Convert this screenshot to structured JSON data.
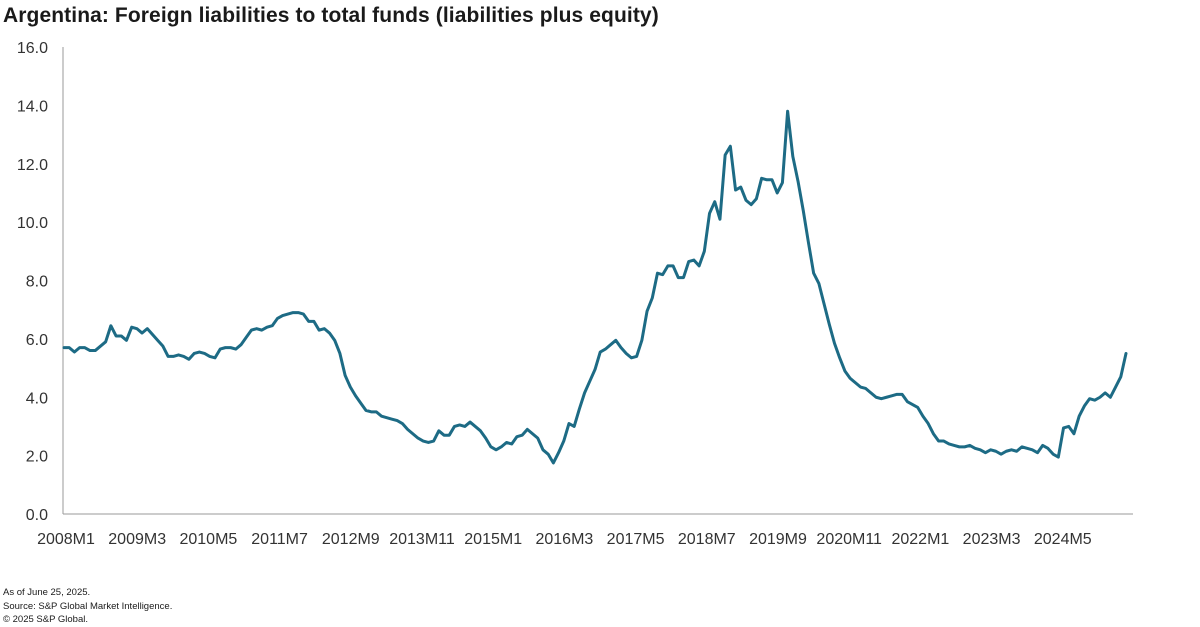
{
  "title": "Argentina: Foreign liabilities to total funds (liabilities plus equity)",
  "footnotes": {
    "as_of": "As of June 25, 2025.",
    "source": "Source: S&P Global Market Intelligence.",
    "copyright": "© 2025 S&P Global."
  },
  "colors": {
    "line": "#1d6b85",
    "axis": "#9a9a9a"
  },
  "chart_data": {
    "type": "line",
    "title": "Argentina: Foreign liabilities to total funds (liabilities plus equity)",
    "xlabel": "",
    "ylabel": "",
    "ylim": [
      0,
      16
    ],
    "yticks": [
      "0.0",
      "2.0",
      "4.0",
      "6.0",
      "8.0",
      "10.0",
      "12.0",
      "14.0",
      "16.0"
    ],
    "xticks": [
      "2008M1",
      "2009M3",
      "2010M5",
      "2011M7",
      "2012M9",
      "2013M11",
      "2015M1",
      "2016M3",
      "2017M5",
      "2018M7",
      "2019M9",
      "2020M11",
      "2022M1",
      "2023M3",
      "2024M5"
    ],
    "grid": false,
    "legend": "none",
    "series": [
      {
        "x_start": "2008M1",
        "frequency": "monthly",
        "values": [
          5.7,
          5.7,
          5.55,
          5.7,
          5.7,
          5.6,
          5.6,
          5.75,
          5.9,
          6.45,
          6.1,
          6.1,
          5.95,
          6.4,
          6.35,
          6.2,
          6.35,
          6.15,
          5.95,
          5.75,
          5.4,
          5.4,
          5.45,
          5.4,
          5.3,
          5.5,
          5.55,
          5.5,
          5.4,
          5.35,
          5.65,
          5.7,
          5.7,
          5.65,
          5.8,
          6.05,
          6.3,
          6.35,
          6.3,
          6.4,
          6.45,
          6.7,
          6.8,
          6.85,
          6.9,
          6.9,
          6.85,
          6.6,
          6.6,
          6.3,
          6.35,
          6.2,
          5.95,
          5.5,
          4.75,
          4.35,
          4.05,
          3.8,
          3.55,
          3.5,
          3.5,
          3.35,
          3.3,
          3.25,
          3.2,
          3.1,
          2.9,
          2.75,
          2.6,
          2.5,
          2.45,
          2.5,
          2.85,
          2.7,
          2.7,
          3.0,
          3.05,
          3.0,
          3.15,
          3.0,
          2.85,
          2.6,
          2.3,
          2.2,
          2.3,
          2.45,
          2.4,
          2.65,
          2.7,
          2.9,
          2.75,
          2.6,
          2.2,
          2.05,
          1.75,
          2.1,
          2.5,
          3.1,
          3.0,
          3.6,
          4.15,
          4.55,
          4.95,
          5.55,
          5.65,
          5.8,
          5.95,
          5.7,
          5.5,
          5.35,
          5.4,
          5.95,
          6.95,
          7.4,
          8.25,
          8.2,
          8.5,
          8.5,
          8.1,
          8.1,
          8.65,
          8.7,
          8.5,
          9.0,
          10.3,
          10.7,
          10.1,
          12.3,
          12.6,
          11.1,
          11.2,
          10.75,
          10.6,
          10.8,
          11.5,
          11.45,
          11.45,
          11.0,
          11.35,
          13.8,
          12.25,
          11.4,
          10.4,
          9.3,
          8.25,
          7.9,
          7.2,
          6.5,
          5.85,
          5.35,
          4.9,
          4.65,
          4.5,
          4.35,
          4.3,
          4.15,
          4.0,
          3.95,
          4.0,
          4.05,
          4.1,
          4.1,
          3.85,
          3.75,
          3.65,
          3.35,
          3.1,
          2.75,
          2.5,
          2.5,
          2.4,
          2.35,
          2.3,
          2.3,
          2.35,
          2.25,
          2.2,
          2.1,
          2.2,
          2.15,
          2.05,
          2.15,
          2.2,
          2.15,
          2.3,
          2.25,
          2.2,
          2.1,
          2.35,
          2.25,
          2.05,
          1.95,
          2.95,
          3.0,
          2.75,
          3.35,
          3.7,
          3.95,
          3.9,
          4.0,
          4.15,
          4.0,
          4.35,
          4.7,
          5.5
        ]
      }
    ]
  }
}
